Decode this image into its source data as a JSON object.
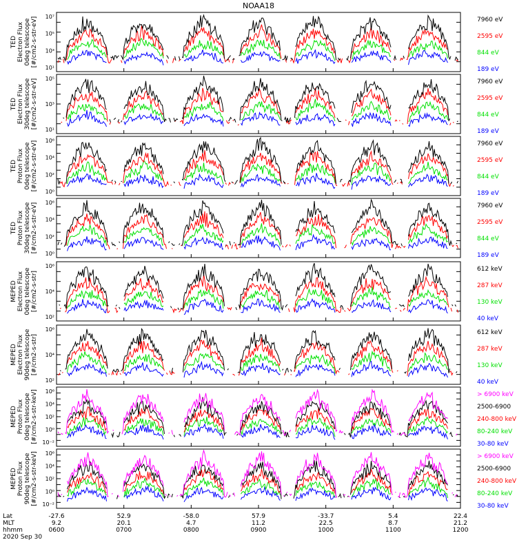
{
  "title": "NOAA18",
  "colors": {
    "blue": "#0000ff",
    "red": "#ff0000",
    "green": "#00e000",
    "black": "#000000",
    "magenta": "#ff00ff"
  },
  "chart_data": [
    {
      "type": "line",
      "ylabel": [
        "TED",
        "Electron Flux",
        "0deg telescope",
        "[#/cm2-s-str-eV]"
      ],
      "yticks": [
        "10¹",
        "10³",
        "10⁵",
        "10⁷"
      ],
      "log_ylim": [
        1,
        7
      ],
      "series": [
        {
          "name": "7960 eV",
          "color": "#000000"
        },
        {
          "name": "2595 eV",
          "color": "#ff0000"
        },
        {
          "name": "844 eV",
          "color": "#00e000"
        },
        {
          "name": "189 eV",
          "color": "#0000ff"
        }
      ]
    },
    {
      "type": "line",
      "ylabel": [
        "TED",
        "Electron Flux",
        "30deg telescope",
        "[#/cm2-s-str-eV]"
      ],
      "yticks": [
        "10¹",
        "10³",
        "10⁵"
      ],
      "log_ylim": [
        0,
        6
      ],
      "series": [
        {
          "name": "7960 eV",
          "color": "#000000"
        },
        {
          "name": "2595 eV",
          "color": "#ff0000"
        },
        {
          "name": "844 eV",
          "color": "#00e000"
        },
        {
          "name": "189 eV",
          "color": "#0000ff"
        }
      ]
    },
    {
      "type": "line",
      "ylabel": [
        "TED",
        "Proton Flux",
        "0deg telescope",
        "[#/cm2-s-str-eV]"
      ],
      "yticks": [
        "10⁰",
        "10²",
        "10⁴",
        "10⁶"
      ],
      "log_ylim": [
        0,
        7
      ],
      "series": [
        {
          "name": "7960 eV",
          "color": "#000000"
        },
        {
          "name": "2595 eV",
          "color": "#ff0000"
        },
        {
          "name": "844 eV",
          "color": "#00e000"
        },
        {
          "name": "189 eV",
          "color": "#0000ff"
        }
      ]
    },
    {
      "type": "line",
      "ylabel": [
        "TED",
        "Proton Flux",
        "30deg telescope",
        "[#/cm2-s-str-eV]"
      ],
      "yticks": [
        "10⁰",
        "10²",
        "10⁴",
        "10⁶"
      ],
      "log_ylim": [
        0,
        7
      ],
      "series": [
        {
          "name": "7960 eV",
          "color": "#000000"
        },
        {
          "name": "2595 eV",
          "color": "#ff0000"
        },
        {
          "name": "844 eV",
          "color": "#00e000"
        },
        {
          "name": "189 eV",
          "color": "#0000ff"
        }
      ]
    },
    {
      "type": "line",
      "ylabel": [
        "MEPED",
        "Electron Flux",
        "0deg telescope",
        "[#/cm2-s-str]"
      ],
      "yticks": [
        "10²",
        "10⁴",
        "10⁶"
      ],
      "log_ylim": [
        1,
        7
      ],
      "series": [
        {
          "name": "612 keV",
          "color": "#000000"
        },
        {
          "name": "287 keV",
          "color": "#ff0000"
        },
        {
          "name": "130 keV",
          "color": "#00e000"
        },
        {
          "name": "40 keV",
          "color": "#0000ff"
        }
      ]
    },
    {
      "type": "line",
      "ylabel": [
        "MEPED",
        "Electron Flux",
        "90deg telescope",
        "[#/cm2-s-str]"
      ],
      "yticks": [
        "10²",
        "10⁴",
        "10⁶"
      ],
      "log_ylim": [
        1,
        7
      ],
      "series": [
        {
          "name": "612 keV",
          "color": "#000000"
        },
        {
          "name": "287 keV",
          "color": "#ff0000"
        },
        {
          "name": "130 keV",
          "color": "#00e000"
        },
        {
          "name": "40 keV",
          "color": "#0000ff"
        }
      ]
    },
    {
      "type": "line",
      "ylabel": [
        "MEPED",
        "Proton Flux",
        "0deg telescope",
        "[#/cm2-s-str-keV]"
      ],
      "yticks": [
        "10⁻²",
        "10⁰",
        "10²",
        "10⁴",
        "10⁶"
      ],
      "log_ylim": [
        -3,
        7
      ],
      "series": [
        {
          "name": "> 6900 keV",
          "color": "#ff00ff"
        },
        {
          "name": "2500-6900",
          "color": "#000000"
        },
        {
          "name": "240-800 keV",
          "color": "#ff0000"
        },
        {
          "name": "80-240 keV",
          "color": "#00e000"
        },
        {
          "name": "30-80 keV",
          "color": "#0000ff"
        }
      ]
    },
    {
      "type": "line",
      "ylabel": [
        "MEPED",
        "Proton Flux",
        "90deg telescope",
        "[#/cm2-s-str-keV]"
      ],
      "yticks": [
        "10⁻²",
        "10⁰",
        "10²",
        "10⁴",
        "10⁶"
      ],
      "log_ylim": [
        -3,
        7
      ],
      "series": [
        {
          "name": "> 6900 keV",
          "color": "#ff00ff"
        },
        {
          "name": "2500-6900",
          "color": "#000000"
        },
        {
          "name": "240-800 keV",
          "color": "#ff0000"
        },
        {
          "name": "80-240 keV",
          "color": "#00e000"
        },
        {
          "name": "30-80 keV",
          "color": "#0000ff"
        }
      ]
    }
  ],
  "xaxis": {
    "row_labels": [
      "Lat",
      "MLT",
      "hhmm"
    ],
    "lat": [
      "-27.6",
      "52.9",
      "-58.0",
      "57.9",
      "-33.7",
      "5.4",
      "22.4"
    ],
    "mlt": [
      "9.2",
      "20.1",
      "4.7",
      "11.2",
      "22.5",
      "8.7",
      "21.2"
    ],
    "hhmm": [
      "0600",
      "0700",
      "0800",
      "0900",
      "1000",
      "1100",
      "1200"
    ],
    "date": "2020 Sep 30"
  }
}
